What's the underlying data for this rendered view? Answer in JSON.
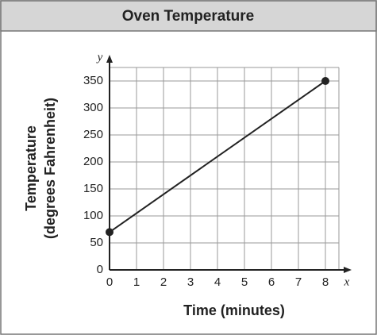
{
  "chart_data": {
    "type": "line",
    "title": "Oven Temperature",
    "xlabel": "Time (minutes)",
    "ylabel": [
      "Temperature",
      "(degrees Fahrenheit)"
    ],
    "x_axis_letter": "x",
    "y_axis_letter": "y",
    "x": [
      0,
      8
    ],
    "values": [
      70,
      350
    ],
    "color": "#222222",
    "xlim": [
      0,
      8.5
    ],
    "ylim": [
      0,
      375
    ],
    "xticks": [
      0,
      1,
      2,
      3,
      4,
      5,
      6,
      7,
      8
    ],
    "yticks": [
      0,
      50,
      100,
      150,
      200,
      250,
      300,
      350
    ],
    "grid": true
  }
}
